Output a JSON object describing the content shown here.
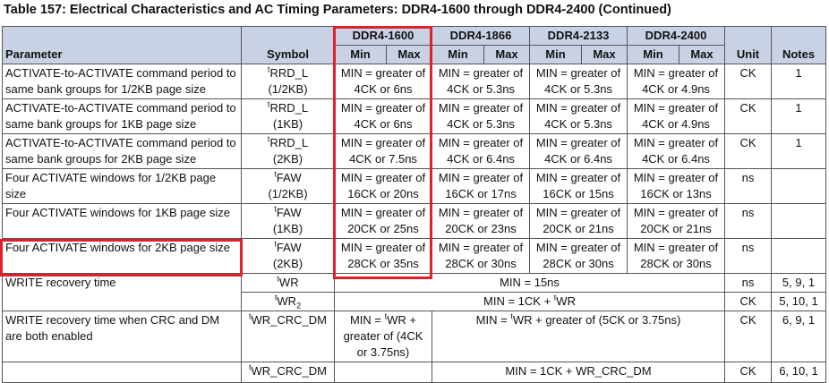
{
  "title": "Table 157: Electrical Characteristics and AC Timing Parameters: DDR4-1600 through DDR4-2400 (Continued)",
  "header": {
    "parameter": "Parameter",
    "symbol": "Symbol",
    "speeds": [
      "DDR4-1600",
      "DDR4-1866",
      "DDR4-2133",
      "DDR4-2400"
    ],
    "min": "Min",
    "max": "Max",
    "unit": "Unit",
    "notes": "Notes"
  },
  "rows": [
    {
      "param": "ACTIVATE-to-ACTIVATE command period to same bank groups for 1/2KB page size",
      "sym_main": "RRD_L",
      "sym_sub": "(1/2KB)",
      "cells": [
        "MIN = greater of 4CK or 6ns",
        "MIN = greater of 4CK or 5.3ns",
        "MIN = greater of 4CK or 5.3ns",
        "MIN = greater of 4CK or 4.9ns"
      ],
      "unit": "CK",
      "notes": "1"
    },
    {
      "param": "ACTIVATE-to-ACTIVATE command period to same bank groups for 1KB page size",
      "sym_main": "RRD_L",
      "sym_sub": "(1KB)",
      "cells": [
        "MIN = greater of 4CK or 6ns",
        "MIN = greater of 4CK or 5.3ns",
        "MIN = greater of 4CK or 5.3ns",
        "MIN = greater of 4CK or 4.9ns"
      ],
      "unit": "CK",
      "notes": "1"
    },
    {
      "param": "ACTIVATE-to-ACTIVATE command period to same bank groups for 2KB page size",
      "sym_main": "RRD_L",
      "sym_sub": "(2KB)",
      "cells": [
        "MIN = greater of 4CK or 7.5ns",
        "MIN = greater of 4CK or 6.4ns",
        "MIN = greater of 4CK or 6.4ns",
        "MIN = greater of 4CK or 6.4ns"
      ],
      "unit": "CK",
      "notes": "1"
    },
    {
      "param": "Four ACTIVATE windows for 1/2KB page size",
      "sym_main": "FAW",
      "sym_sub": "(1/2KB)",
      "cells": [
        "MIN = greater of 16CK or 20ns",
        "MIN = greater of 16CK or 17ns",
        "MIN = greater of 16CK or 15ns",
        "MIN = greater of 16CK or 13ns"
      ],
      "unit": "ns",
      "notes": ""
    },
    {
      "param": "Four ACTIVATE windows for 1KB page size",
      "sym_main": "FAW",
      "sym_sub": "(1KB)",
      "cells": [
        "MIN = greater of 20CK or 25ns",
        "MIN = greater of 20CK or 23ns",
        "MIN = greater of 20CK or 21ns",
        "MIN = greater of 20CK or 21ns"
      ],
      "unit": "ns",
      "notes": ""
    },
    {
      "param": "Four ACTIVATE windows for 2KB page size",
      "sym_main": "FAW",
      "sym_sub": "(2KB)",
      "cells": [
        "MIN = greater of 28CK or 35ns",
        "MIN = greater of 28CK or 30ns",
        "MIN = greater of 28CK or 30ns",
        "MIN = greater of 28CK or 30ns"
      ],
      "unit": "ns",
      "notes": ""
    }
  ],
  "write_recovery": {
    "param": "WRITE recovery time",
    "sym1": "WR",
    "val1": "MIN = 15ns",
    "unit1": "ns",
    "notes1": "5, 9, 1",
    "sym2": "WR",
    "sym2_sub": "2",
    "val2_pre": "MIN = 1CK + ",
    "val2_sym": "WR",
    "unit2": "CK",
    "notes2": "5, 10, 1"
  },
  "write_recovery_crc": {
    "param": "WRITE recovery time when CRC and DM are both enabled",
    "sym": "WR_CRC_DM",
    "val1600_a": "MIN = ",
    "val1600_sym": "WR",
    "val1600_b": " + greater of (4CK or 3.75ns)",
    "val_rest_a": "MIN = ",
    "val_rest_sym": "WR",
    "val_rest_b": " + greater of (5CK or 3.75ns)",
    "unit": "CK",
    "notes": "6, 9, 1"
  },
  "cut_row": {
    "sym": "WR_CRC_DM",
    "val": "MIN = 1CK + WR_CRC_DM",
    "unit": "CK",
    "notes": "6, 10, 1"
  },
  "tprefix": "t"
}
